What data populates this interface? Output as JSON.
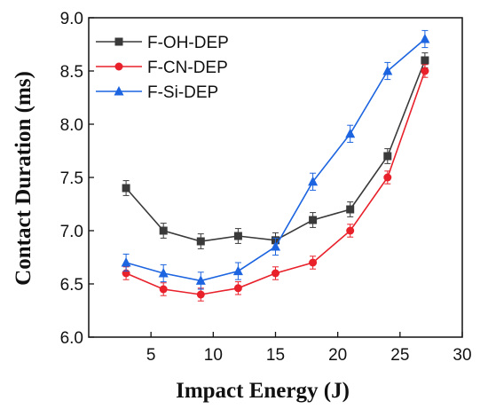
{
  "chart_data": {
    "type": "line",
    "xlabel": "Impact Energy (J)",
    "ylabel": "Contact Duration (ms)",
    "xlim": [
      0,
      30
    ],
    "ylim": [
      6.0,
      9.0
    ],
    "xticks": [
      5,
      10,
      15,
      20,
      25,
      30
    ],
    "yticks": [
      "6.0",
      "6.5",
      "7.0",
      "7.5",
      "8.0",
      "8.5",
      "9.0"
    ],
    "grid": false,
    "legend_position": "top-left",
    "x": [
      3,
      6,
      9,
      12,
      15,
      18,
      21,
      24,
      27
    ],
    "series": [
      {
        "name": "F-OH-DEP",
        "color": "#3a3a3a",
        "marker": "square",
        "values": [
          7.4,
          7.0,
          6.9,
          6.95,
          6.91,
          7.1,
          7.2,
          7.7,
          8.6
        ],
        "error": 0.07
      },
      {
        "name": "F-CN-DEP",
        "color": "#e8212b",
        "marker": "circle",
        "values": [
          6.6,
          6.45,
          6.4,
          6.46,
          6.6,
          6.7,
          7.0,
          7.5,
          8.5
        ],
        "error": 0.06
      },
      {
        "name": "F-Si-DEP",
        "color": "#1c64e0",
        "marker": "triangle",
        "values": [
          6.7,
          6.6,
          6.53,
          6.62,
          6.85,
          7.46,
          7.91,
          8.5,
          8.8
        ],
        "error": 0.08
      }
    ]
  }
}
